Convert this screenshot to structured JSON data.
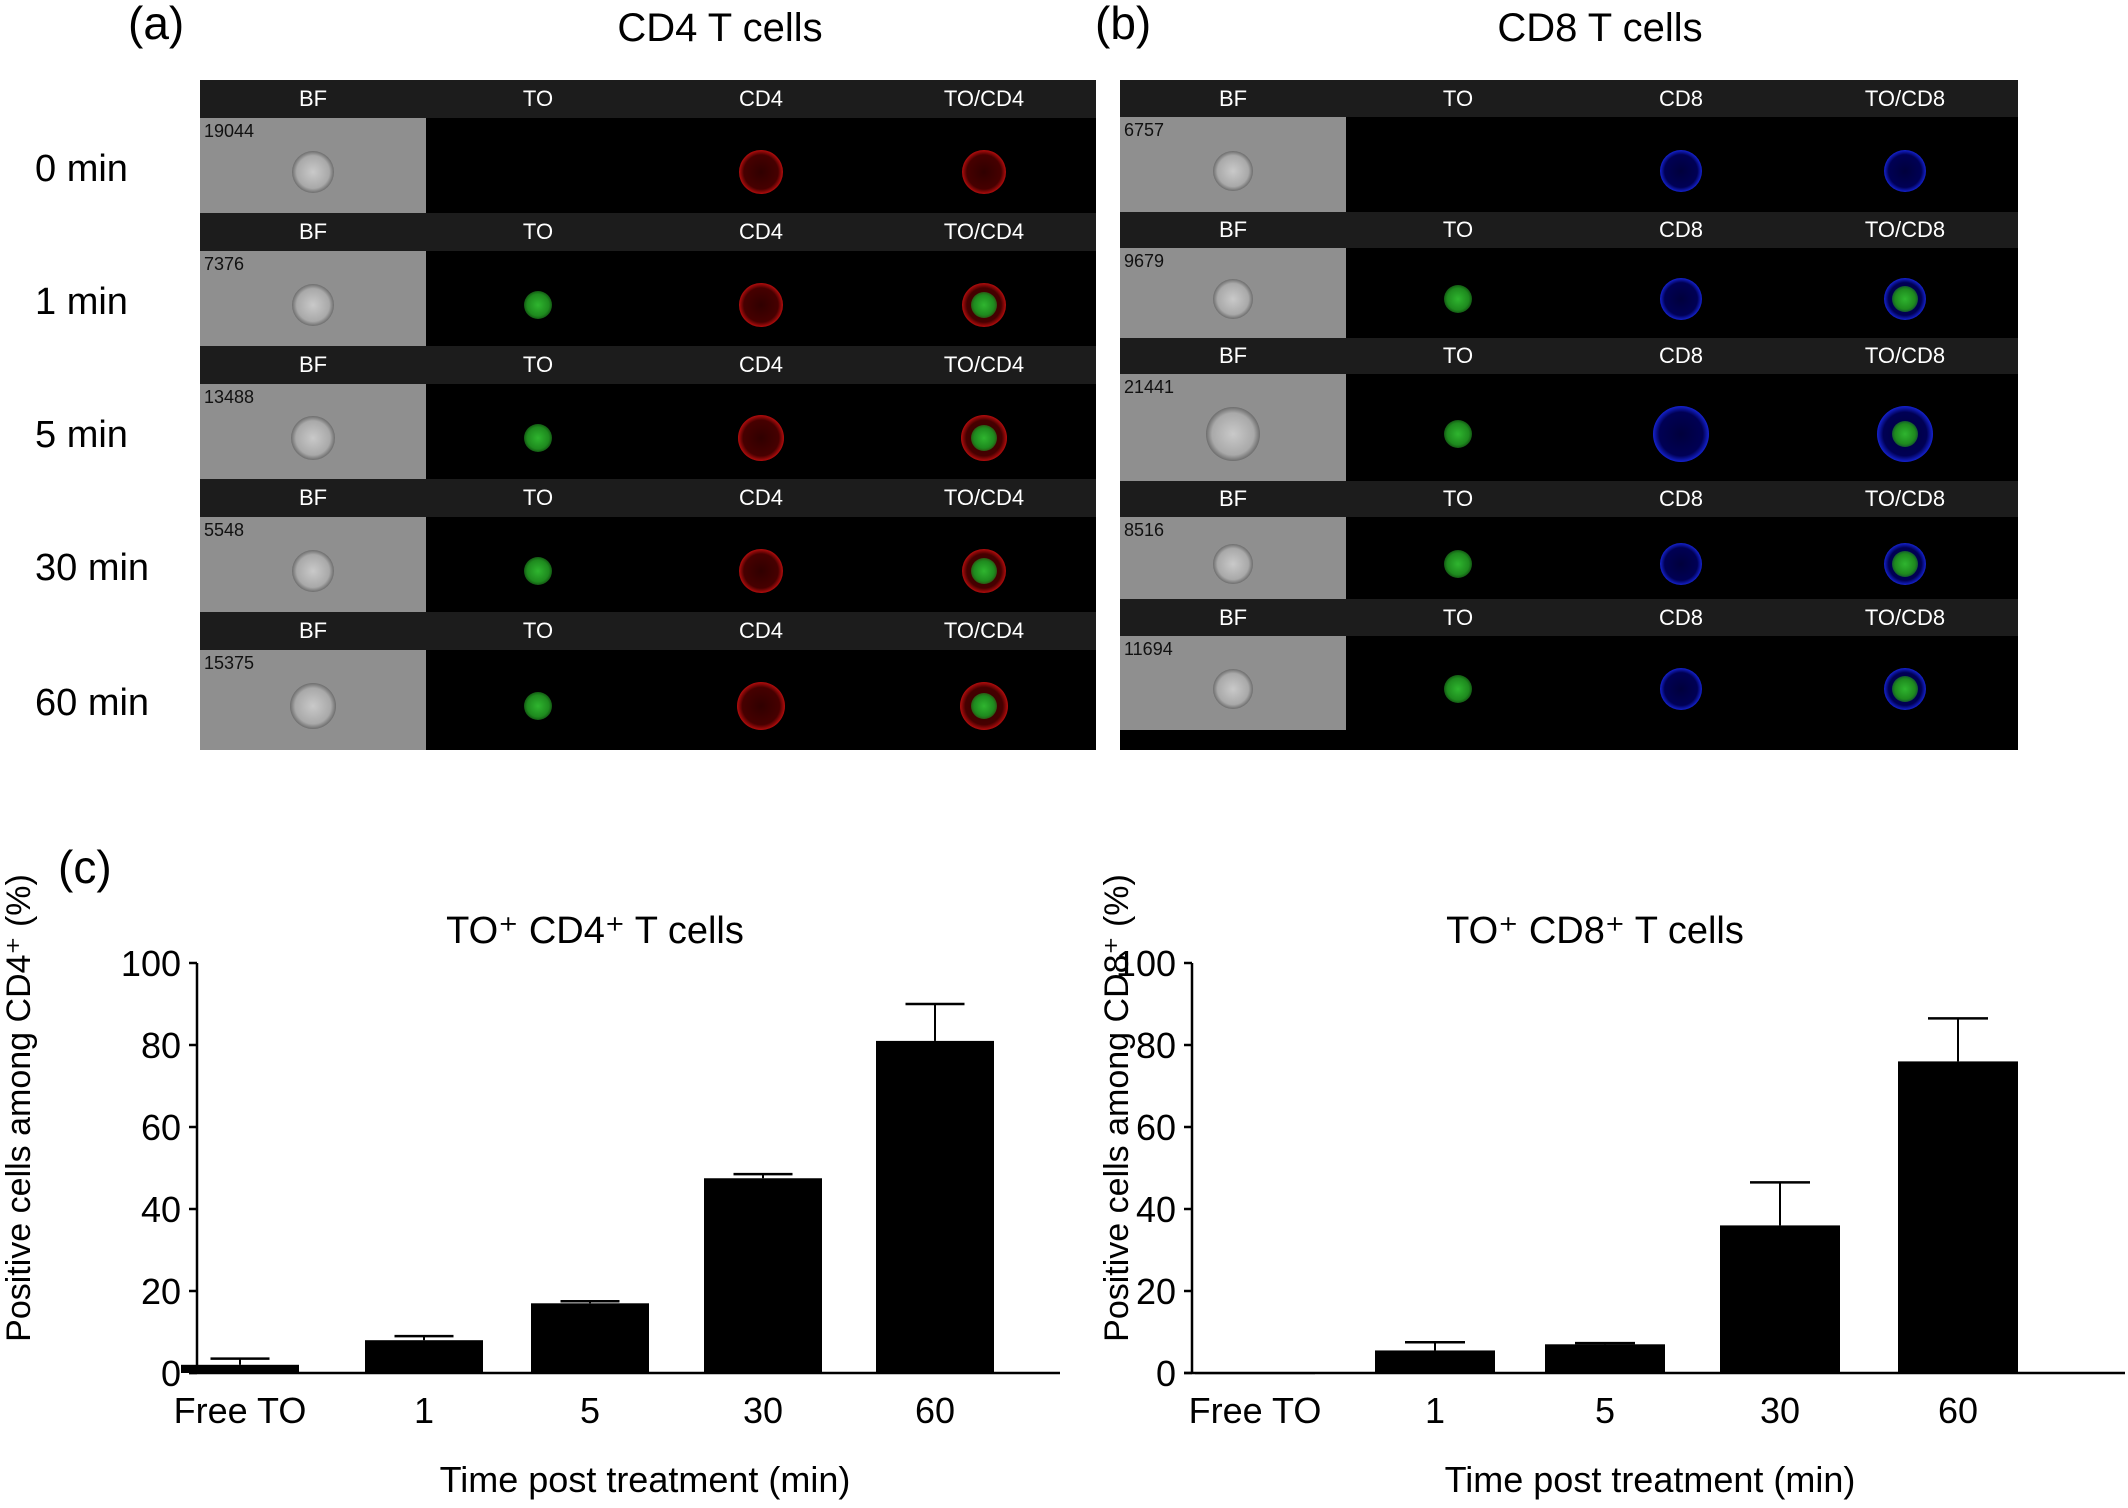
{
  "panel_a": {
    "letter": "(a)",
    "title": "CD4 T cells",
    "columns": [
      "BF",
      "TO",
      "CD4",
      "TO/CD4"
    ],
    "rows": [
      {
        "time": "0 min",
        "id": "19044",
        "to_signal": false
      },
      {
        "time": "1 min",
        "id": "7376",
        "to_signal": true
      },
      {
        "time": "5 min",
        "id": "13488",
        "to_signal": true
      },
      {
        "time": "30 min",
        "id": "5548",
        "to_signal": true
      },
      {
        "time": "60 min",
        "id": "15375",
        "to_signal": true
      }
    ],
    "marker_color": "#d01010"
  },
  "panel_b": {
    "letter": "(b)",
    "title": "CD8 T cells",
    "columns": [
      "BF",
      "TO",
      "CD8",
      "TO/CD8"
    ],
    "rows": [
      {
        "id": "6757",
        "to_signal": false
      },
      {
        "id": "9679",
        "to_signal": true
      },
      {
        "id": "21441",
        "to_signal": true
      },
      {
        "id": "8516",
        "to_signal": true
      },
      {
        "id": "11694",
        "to_signal": true
      }
    ],
    "marker_color": "#1a2cf0"
  },
  "panel_c": {
    "letter": "(c)"
  },
  "chart_data": [
    {
      "type": "bar",
      "title": "TO⁺ CD4⁺ T cells",
      "xlabel": "Time post treatment (min)",
      "ylabel": "Positive cells among CD4⁺  (%)",
      "categories": [
        "Free TO",
        "1",
        "5",
        "30",
        "60"
      ],
      "values": [
        2,
        8,
        17,
        47.5,
        81
      ],
      "errors": [
        1.5,
        1,
        0.5,
        1,
        9
      ],
      "ylim": [
        0,
        100
      ],
      "yticks": [
        0,
        20,
        40,
        60,
        80,
        100
      ],
      "grid": false,
      "bar_color": "#000000"
    },
    {
      "type": "bar",
      "title": "TO⁺ CD8⁺ T cells",
      "xlabel": "Time post treatment (min)",
      "ylabel": "Positive cells among CD8⁺  (%)",
      "categories": [
        "Free TO",
        "1",
        "5",
        "30",
        "60"
      ],
      "values": [
        0.2,
        5.5,
        7,
        36,
        76
      ],
      "errors": [
        0,
        2,
        0.3,
        10.5,
        10.5
      ],
      "ylim": [
        0,
        100
      ],
      "yticks": [
        0,
        20,
        40,
        60,
        80,
        100
      ],
      "grid": false,
      "bar_color": "#000000"
    }
  ]
}
